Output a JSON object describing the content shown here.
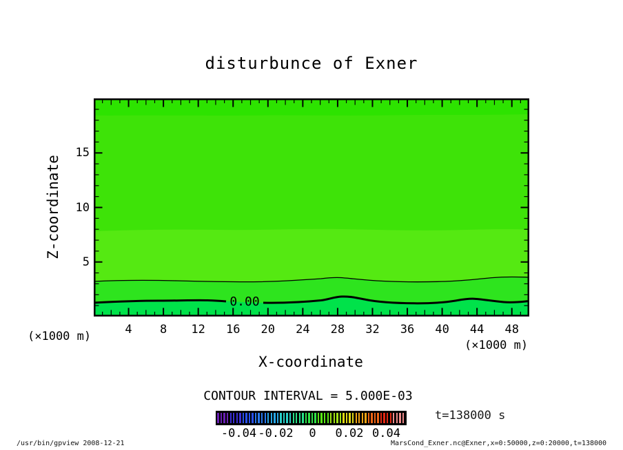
{
  "title": "disturbunce of Exner",
  "annotations": {
    "contour_interval": "CONTOUR INTERVAL = 5.000E-03",
    "time": "t=138000 s",
    "zero_contour_label": "0.00"
  },
  "axes": {
    "x": {
      "label": "X-coordinate",
      "unit": "(×1000 m)",
      "range": [
        0,
        50
      ],
      "ticks": [
        4,
        8,
        12,
        16,
        20,
        24,
        28,
        32,
        36,
        40,
        44,
        48
      ],
      "minor_step": 1,
      "mid_step": 2,
      "major_step": 4
    },
    "z": {
      "label": "Z-coordinate",
      "unit": "(×1000 m)",
      "range": [
        0,
        20
      ],
      "ticks": [
        5,
        10,
        15
      ],
      "minor_step": 1,
      "major_step": 5
    }
  },
  "colorbar": {
    "tick_labels": [
      "-0.04",
      "-0.02",
      "0",
      "0.02",
      "0.04"
    ],
    "tick_values": [
      -0.04,
      -0.02,
      0,
      0.02,
      0.04
    ],
    "value_range": [
      -0.053,
      0.051
    ],
    "colors": [
      "#6a1fb4",
      "#3c2fd8",
      "#2850f0",
      "#2878f0",
      "#28a8e8",
      "#28d0c8",
      "#28e088",
      "#30e348",
      "#58e814",
      "#a0e414",
      "#e0d814",
      "#f0a414",
      "#ee6414",
      "#e42814",
      "#f08c8c"
    ],
    "stripes_per_color": 4
  },
  "footer": {
    "left": "/usr/bin/gpview  2008-12-21",
    "right": "MarsCond_Exner.nc@Exner,x=0:50000,z=0:20000,t=138000"
  },
  "chart_data": {
    "type": "heatmap",
    "style": "filled_contour_xz_section",
    "title": "disturbunce of Exner",
    "xlabel": "X-coordinate (×1000 m)",
    "ylabel": "Z-coordinate (×1000 m)",
    "xlim": [
      0,
      50
    ],
    "ylim": [
      0,
      20
    ],
    "grid": false,
    "legend_position": "colorbar-bottom",
    "contour_interval": 0.005,
    "time_label": "t=138000 s",
    "contour_lines": [
      {
        "level": 0.0,
        "style": "thick",
        "label": "0.00",
        "x": [
          0,
          5,
          10,
          15,
          18,
          22,
          26,
          28,
          30,
          35,
          40,
          42,
          45,
          48,
          50
        ],
        "z": [
          1.25,
          1.45,
          1.45,
          1.3,
          1.2,
          1.35,
          1.75,
          1.85,
          1.55,
          1.25,
          1.6,
          1.65,
          1.35,
          1.3,
          1.4
        ]
      },
      {
        "level": 0.005,
        "style": "thin",
        "x": [
          0,
          5,
          10,
          15,
          20,
          25,
          27,
          30,
          35,
          40,
          44,
          47,
          50
        ],
        "z": [
          3.2,
          3.3,
          3.25,
          3.15,
          3.2,
          3.5,
          3.6,
          3.4,
          3.15,
          3.25,
          3.55,
          3.65,
          3.6
        ]
      }
    ],
    "tone_bands": [
      {
        "z_range": [
          18.4,
          20.0
        ],
        "color": "#2de300",
        "note": "top band, brighter green"
      },
      {
        "z_range": [
          7.8,
          18.4
        ],
        "color": "#3ee308",
        "note": "main body green"
      },
      {
        "z_range": [
          3.3,
          7.8
        ],
        "color": "#55e912",
        "note": "lighter yellow-green band above thin contour"
      },
      {
        "z_range": [
          1.3,
          3.3
        ],
        "color": "#2ee41e",
        "note": "between thin and thick (0.00) contours"
      },
      {
        "z_range": [
          0.0,
          1.3
        ],
        "color": "#00e24a",
        "note": "below 0.00 contour, cyan-green"
      }
    ],
    "colorbar_ticks": [
      -0.04,
      -0.02,
      0,
      0.02,
      0.04
    ]
  }
}
